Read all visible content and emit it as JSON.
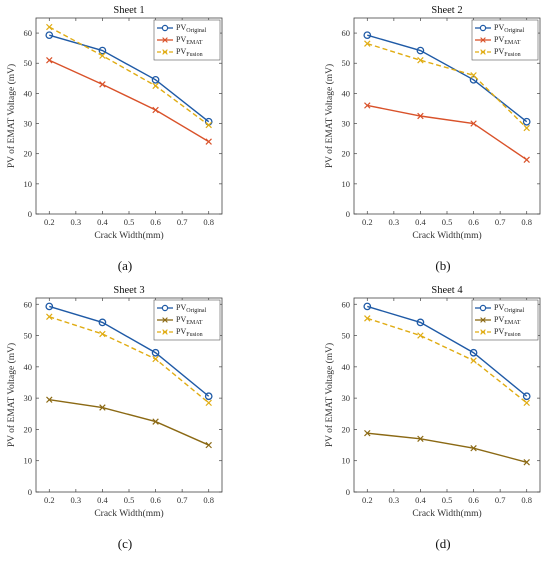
{
  "series_colors": {
    "original": "#1f5aa6",
    "emat_a": "#d9522a",
    "emat_b": "#8b6914",
    "fusion": "#e0ac12"
  },
  "chart_data": [
    {
      "type": "line",
      "title": "Sheet 1",
      "panel_label": "(a)",
      "xlabel": "Crack Width(mm)",
      "ylabel": "PV of EMAT Voltage (mV)",
      "xlim": [
        0.15,
        0.85
      ],
      "ylim": [
        0,
        65
      ],
      "xticks": [
        "0.2",
        "0.3",
        "0.4",
        "0.5",
        "0.6",
        "0.7",
        "0.8"
      ],
      "yticks": [
        "0",
        "10",
        "20",
        "30",
        "40",
        "50",
        "60"
      ],
      "legend_position": "top-right",
      "x": [
        0.2,
        0.4,
        0.6,
        0.8
      ],
      "series": [
        {
          "name": "PV",
          "name_sub": "Original",
          "values": [
            59.3,
            54.2,
            44.5,
            30.6
          ],
          "style": "original"
        },
        {
          "name": "PV",
          "name_sub": "EMAT",
          "values": [
            51.0,
            43.0,
            34.5,
            24.0
          ],
          "style": "emat_a"
        },
        {
          "name": "PV",
          "name_sub": "Fusion",
          "values": [
            62.0,
            52.5,
            42.5,
            29.5
          ],
          "style": "fusion"
        }
      ]
    },
    {
      "type": "line",
      "title": "Sheet 2",
      "panel_label": "(b)",
      "xlabel": "Crack Width(mm)",
      "ylabel": "PV of EMAT Voltage (mV)",
      "xlim": [
        0.15,
        0.85
      ],
      "ylim": [
        0,
        65
      ],
      "xticks": [
        "0.2",
        "0.3",
        "0.4",
        "0.5",
        "0.6",
        "0.7",
        "0.8"
      ],
      "yticks": [
        "0",
        "10",
        "20",
        "30",
        "40",
        "50",
        "60"
      ],
      "legend_position": "top-right",
      "x": [
        0.2,
        0.4,
        0.6,
        0.8
      ],
      "series": [
        {
          "name": "PV",
          "name_sub": "Original",
          "values": [
            59.3,
            54.2,
            44.5,
            30.6
          ],
          "style": "original"
        },
        {
          "name": "PV",
          "name_sub": "EMAT",
          "values": [
            36.0,
            32.5,
            30.0,
            18.0
          ],
          "style": "emat_a"
        },
        {
          "name": "PV",
          "name_sub": "Fusion",
          "values": [
            56.5,
            51.0,
            46.0,
            28.5
          ],
          "style": "fusion"
        }
      ]
    },
    {
      "type": "line",
      "title": "Sheet 3",
      "panel_label": "(c)",
      "xlabel": "Crack Width(mm)",
      "ylabel": "PV of EMAT Voltage (mV)",
      "xlim": [
        0.15,
        0.85
      ],
      "ylim": [
        0,
        62
      ],
      "xticks": [
        "0.2",
        "0.3",
        "0.4",
        "0.5",
        "0.6",
        "0.7",
        "0.8"
      ],
      "yticks": [
        "0",
        "10",
        "20",
        "30",
        "40",
        "50",
        "60"
      ],
      "legend_position": "top-right",
      "x": [
        0.2,
        0.4,
        0.6,
        0.8
      ],
      "series": [
        {
          "name": "PV",
          "name_sub": "Original",
          "values": [
            59.3,
            54.2,
            44.5,
            30.6
          ],
          "style": "original"
        },
        {
          "name": "PV",
          "name_sub": "EMAT",
          "values": [
            29.5,
            27.0,
            22.5,
            15.0
          ],
          "style": "emat_b"
        },
        {
          "name": "PV",
          "name_sub": "Fusion",
          "values": [
            56.0,
            50.5,
            42.5,
            28.5
          ],
          "style": "fusion"
        }
      ]
    },
    {
      "type": "line",
      "title": "Sheet 4",
      "panel_label": "(d)",
      "xlabel": "Crack Width(mm)",
      "ylabel": "PV of EMAT Voltage (mV)",
      "xlim": [
        0.15,
        0.85
      ],
      "ylim": [
        0,
        62
      ],
      "xticks": [
        "0.2",
        "0.3",
        "0.4",
        "0.5",
        "0.6",
        "0.7",
        "0.8"
      ],
      "yticks": [
        "0",
        "10",
        "20",
        "30",
        "40",
        "50",
        "60"
      ],
      "legend_position": "top-right",
      "x": [
        0.2,
        0.4,
        0.6,
        0.8
      ],
      "series": [
        {
          "name": "PV",
          "name_sub": "Original",
          "values": [
            59.3,
            54.2,
            44.5,
            30.6
          ],
          "style": "original"
        },
        {
          "name": "PV",
          "name_sub": "EMAT",
          "values": [
            18.8,
            17.0,
            14.0,
            9.5
          ],
          "style": "emat_b"
        },
        {
          "name": "PV",
          "name_sub": "Fusion",
          "values": [
            55.5,
            50.0,
            42.0,
            28.5
          ],
          "style": "fusion"
        }
      ]
    }
  ]
}
